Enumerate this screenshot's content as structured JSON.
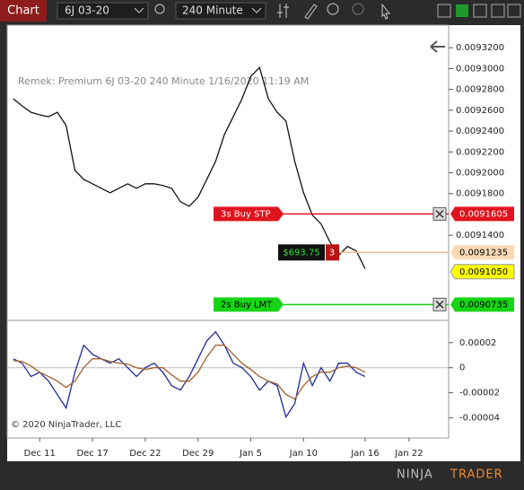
{
  "toolbar": {
    "tab": "Chart",
    "instrument": "6J 03-20",
    "interval": "240 Minute"
  },
  "info": "Remek: Premium  6J 03-20  240 Minute  1/16/2020 11:19 AM",
  "copyright": "© 2020 NinjaTrader, LLC",
  "brand": {
    "first": "NINJA",
    "second": "TRADER"
  },
  "chart_data": [
    {
      "type": "line",
      "color": "#111111",
      "categories": [
        null,
        null,
        null,
        "Dec 11",
        null,
        null,
        null,
        null,
        null,
        "Dec 17",
        null,
        null,
        null,
        null,
        null,
        "Dec 22",
        null,
        null,
        null,
        null,
        null,
        "Dec 29",
        null,
        null,
        null,
        null,
        null,
        "Jan 5",
        null,
        null,
        null,
        null,
        null,
        "Jan 10",
        null,
        null,
        null,
        null,
        null,
        null,
        "Jan 16",
        null,
        null,
        null,
        null,
        "Jan 22",
        null,
        null,
        null,
        null
      ],
      "values": [
        0.009271,
        0.0092642,
        0.0092581,
        0.0092556,
        0.0092538,
        0.0092581,
        0.0092453,
        0.0092023,
        0.0091937,
        0.0091894,
        0.0091851,
        0.0091808,
        0.0091851,
        0.0091894,
        0.0091851,
        0.0091894,
        0.0091894,
        0.0091877,
        0.0091851,
        0.0091722,
        0.0091679,
        0.0091765,
        0.0091937,
        0.0092109,
        0.0092367,
        0.0092538,
        0.009271,
        0.0092925,
        0.0093011,
        0.009271,
        0.0092581,
        0.0092496,
        0.0092109,
        0.0091808,
        0.0091593,
        0.0091508,
        0.0091336,
        0.0091207,
        0.0091293,
        0.009125,
        0.0091078,
        null,
        null,
        null,
        null,
        null,
        null,
        null,
        null,
        null
      ],
      "ylim": [
        0.00906,
        0.00934
      ],
      "yticks": [
        {
          "value": 0.00932,
          "label": "0.0093200"
        },
        {
          "value": 0.0093,
          "label": "0.0093000"
        },
        {
          "value": 0.00928,
          "label": "0.0092800"
        },
        {
          "value": 0.00926,
          "label": "0.0092600"
        },
        {
          "value": 0.00924,
          "label": "0.0092400"
        },
        {
          "value": 0.00922,
          "label": "0.0092200"
        },
        {
          "value": 0.0092,
          "label": "0.0092000"
        },
        {
          "value": 0.00918,
          "label": "0.0091800"
        },
        {
          "value": 0.00914,
          "label": "0.0091400"
        }
      ],
      "orders": [
        {
          "name": "3s  Buy STP",
          "color": "#e0141e",
          "price": {
            "value": 0.0091605,
            "label": "0.0091605"
          }
        },
        {
          "name": "2s  Buy LMT",
          "color": "#17d417",
          "price": {
            "value": 0.0090735,
            "label": "0.0090735"
          }
        }
      ],
      "position": {
        "pnl": "$693.75",
        "quantity": 3,
        "price": {
          "value": 0.0091235,
          "label": "0.0091235"
        }
      },
      "last": {
        "value": 0.009105,
        "label": "0.0091050"
      }
    },
    {
      "type": "line",
      "ylim": [
        -5.6e-05,
        3.7e-05
      ],
      "yticks": [
        {
          "value": 2e-05,
          "label": "0.00002"
        },
        0,
        {
          "value": -2e-05,
          "label": "-0.00002"
        },
        {
          "value": -4e-05,
          "label": "-0.00004"
        }
      ],
      "series": [
        {
          "color": "#1f2a9c",
          "values": [
            7.1e-06,
            3.6e-06,
            -7.1e-06,
            -3.6e-06,
            -1.07e-05,
            -2.14e-05,
            -3.21e-05,
            -3.6e-06,
            1.79e-05,
            1.07e-05,
            7.1e-06,
            3.6e-06,
            7.1e-06,
            0,
            -7.1e-06,
            0,
            3.6e-06,
            -3.6e-06,
            -1.43e-05,
            -1.79e-05,
            -7.1e-06,
            7.1e-06,
            2.14e-05,
            2.86e-05,
            1.79e-05,
            3.6e-06,
            0,
            -7.1e-06,
            -1.79e-05,
            -1.07e-05,
            -1.43e-05,
            -3.93e-05,
            -2.86e-05,
            3.6e-06,
            -1.43e-05,
            0,
            -1.07e-05,
            3.6e-06,
            3.6e-06,
            -3.6e-06,
            -7.1e-06,
            null,
            null,
            null,
            null,
            null,
            null,
            null,
            null,
            null
          ]
        },
        {
          "color": "#a0622d",
          "values": [
            5.7e-06,
            5e-06,
            1.4e-06,
            -3.6e-06,
            -7.1e-06,
            -1.07e-05,
            -1.57e-05,
            -1.07e-05,
            0,
            7.1e-06,
            7.1e-06,
            5e-06,
            3.6e-06,
            2.9e-06,
            0,
            -1.4e-06,
            0,
            0,
            -5.7e-06,
            -1.07e-05,
            -1.07e-05,
            -3.6e-06,
            8.6e-06,
            1.79e-05,
            1.79e-05,
            1.07e-05,
            3.6e-06,
            -1.4e-06,
            -7.1e-06,
            -1.07e-05,
            -1.29e-05,
            -2.14e-05,
            -2.5e-05,
            -1.43e-05,
            -7.1e-06,
            -3.6e-06,
            -3.6e-06,
            0,
            1.4e-06,
            0,
            -3.6e-06,
            null,
            null,
            null,
            null,
            null,
            null,
            null,
            null,
            null
          ]
        }
      ]
    }
  ]
}
